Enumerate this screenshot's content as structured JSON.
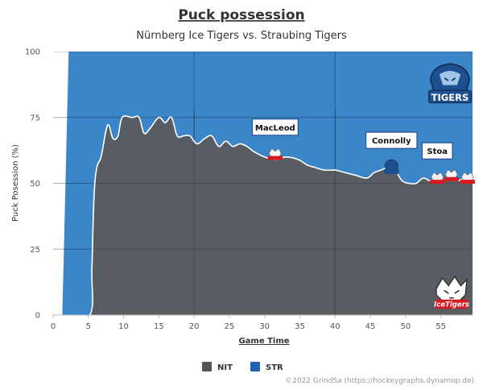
{
  "chart_data": {
    "type": "area",
    "title": "Puck possession",
    "subtitle": "Nürnberg Ice Tigers vs. Straubing Tigers",
    "xlabel": "Game Time",
    "ylabel": "Puck Posession (%)",
    "xlim": [
      0,
      59.5
    ],
    "ylim": [
      0,
      100
    ],
    "xticks": [
      0,
      5,
      10,
      15,
      20,
      25,
      30,
      35,
      40,
      45,
      50,
      55
    ],
    "yticks": [
      0,
      25,
      50,
      75,
      100
    ],
    "grid": true,
    "legend_position": "bottom-center",
    "period_lines": [
      20,
      40
    ],
    "series": [
      {
        "name": "NIT",
        "color": "#5a5a5a",
        "points": [
          [
            0,
            0
          ],
          [
            1.3,
            0
          ],
          [
            5.2,
            0
          ],
          [
            5.5,
            18
          ],
          [
            5.8,
            45
          ],
          [
            6.2,
            56
          ],
          [
            6.8,
            60
          ],
          [
            7.5,
            70
          ],
          [
            7.9,
            72
          ],
          [
            8.5,
            67
          ],
          [
            9.2,
            68
          ],
          [
            9.8,
            75
          ],
          [
            11.2,
            75
          ],
          [
            12.2,
            75
          ],
          [
            12.9,
            69
          ],
          [
            13.8,
            71
          ],
          [
            15.0,
            75
          ],
          [
            15.9,
            73
          ],
          [
            16.8,
            75
          ],
          [
            17.6,
            68
          ],
          [
            18.5,
            68
          ],
          [
            19.4,
            68
          ],
          [
            20.4,
            65
          ],
          [
            21.5,
            67
          ],
          [
            22.5,
            68
          ],
          [
            23.5,
            64
          ],
          [
            24.5,
            66
          ],
          [
            25.5,
            64
          ],
          [
            26.5,
            65
          ],
          [
            27.5,
            64
          ],
          [
            28.5,
            62
          ],
          [
            30,
            60
          ],
          [
            31.5,
            59
          ],
          [
            33,
            60
          ],
          [
            34.8,
            59
          ],
          [
            36,
            57
          ],
          [
            37.2,
            56
          ],
          [
            38.5,
            55
          ],
          [
            40,
            55
          ],
          [
            41.5,
            54
          ],
          [
            43,
            53
          ],
          [
            44.5,
            52
          ],
          [
            45.5,
            54
          ],
          [
            46.5,
            55
          ],
          [
            47.5,
            56
          ],
          [
            48.5,
            55
          ],
          [
            49.5,
            51
          ],
          [
            50.5,
            50
          ],
          [
            51.5,
            50
          ],
          [
            52.5,
            52
          ],
          [
            53.5,
            51
          ],
          [
            54.5,
            52
          ],
          [
            55.5,
            51
          ],
          [
            56.5,
            52
          ],
          [
            57.5,
            51
          ],
          [
            58.5,
            52
          ],
          [
            59.5,
            51
          ]
        ]
      },
      {
        "name": "STR",
        "color": "#3a86c8",
        "points": [
          [
            0,
            0
          ],
          [
            1.3,
            0
          ],
          [
            2.2,
            100
          ],
          [
            59.5,
            100
          ]
        ]
      }
    ],
    "annotations": [
      {
        "label": "MacLeod",
        "x": 31.5,
        "y": 60,
        "team": "STR"
      },
      {
        "label": "Connolly",
        "x": 48,
        "y": 55,
        "team": "NIT"
      },
      {
        "label": "Stoa",
        "x": 54.5,
        "y": 51,
        "team": "STR"
      }
    ],
    "event_markers": [
      {
        "x": 56.5,
        "y": 52,
        "team": "STR"
      },
      {
        "x": 58.8,
        "y": 51,
        "team": "STR"
      }
    ],
    "legend": [
      {
        "label": "NIT",
        "color": "#555555"
      },
      {
        "label": "STR",
        "color": "#1f63b3"
      }
    ],
    "credit": "©2022 GrindSa (https://hockeygraphs.dynamop.de)"
  }
}
